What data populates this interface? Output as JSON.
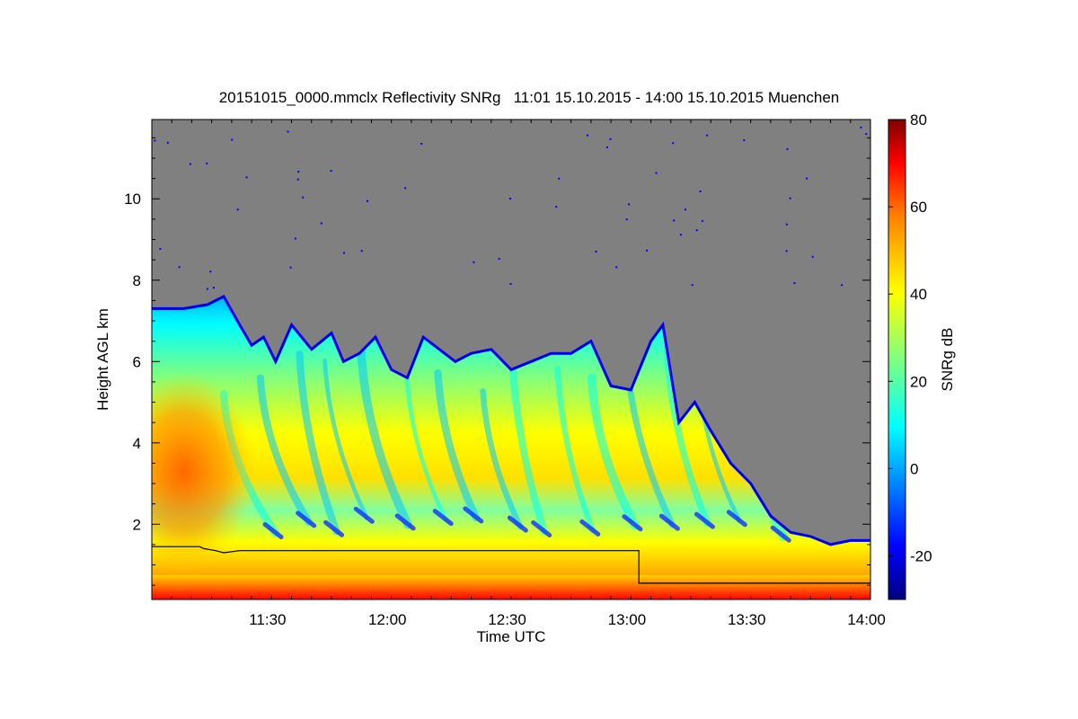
{
  "chart_data": {
    "type": "heatmap",
    "title": "20151015_0000.mmclx Reflectivity SNRg   11:01 15.10.2015 - 14:00 15.10.2015 Muenchen",
    "xlabel": "Time UTC",
    "ylabel": "Height AGL km",
    "xlim": [
      "11:01",
      "14:01"
    ],
    "ylim": [
      0.15,
      11.95
    ],
    "x_ticks": [
      "11:30",
      "12:00",
      "12:30",
      "13:00",
      "13:30",
      "14:00"
    ],
    "y_ticks": [
      2,
      4,
      6,
      8,
      10
    ],
    "colorbar": {
      "label": "SNRg dB",
      "range": [
        -30,
        80
      ],
      "ticks": [
        -20,
        0,
        20,
        40,
        60,
        80
      ]
    },
    "background_color": "#808080",
    "colormap": [
      "#00007f",
      "#0000ff",
      "#007fff",
      "#00ffff",
      "#7fff7f",
      "#ffff00",
      "#ff7f00",
      "#ff0000",
      "#7f0000"
    ],
    "echo_top_profile": {
      "time_min": [
        0,
        8,
        14,
        18,
        22,
        25,
        28,
        31,
        35,
        40,
        45,
        48,
        52,
        56,
        60,
        64,
        68,
        72,
        76,
        80,
        85,
        90,
        95,
        100,
        105,
        110,
        115,
        120,
        125,
        128,
        132,
        136,
        140,
        145,
        150,
        155,
        160,
        165,
        170,
        175,
        180
      ],
      "height_km": [
        7.3,
        7.3,
        7.4,
        7.6,
        6.9,
        6.4,
        6.6,
        6.0,
        6.9,
        6.3,
        6.7,
        6.0,
        6.2,
        6.6,
        5.8,
        5.6,
        6.6,
        6.3,
        6.0,
        6.2,
        6.3,
        5.8,
        6.0,
        6.2,
        6.2,
        6.5,
        5.4,
        5.3,
        6.5,
        6.9,
        4.5,
        5.0,
        4.3,
        3.5,
        3.0,
        2.2,
        1.8,
        1.7,
        1.5,
        1.6,
        1.6
      ]
    },
    "overlay_line_profile": {
      "time_min": [
        0,
        12,
        13,
        16,
        18,
        22,
        30,
        60,
        90,
        120,
        122,
        122,
        180
      ],
      "height_km": [
        1.45,
        1.45,
        1.4,
        1.35,
        1.3,
        1.35,
        1.35,
        1.35,
        1.35,
        1.35,
        1.35,
        0.55,
        0.55
      ]
    }
  }
}
